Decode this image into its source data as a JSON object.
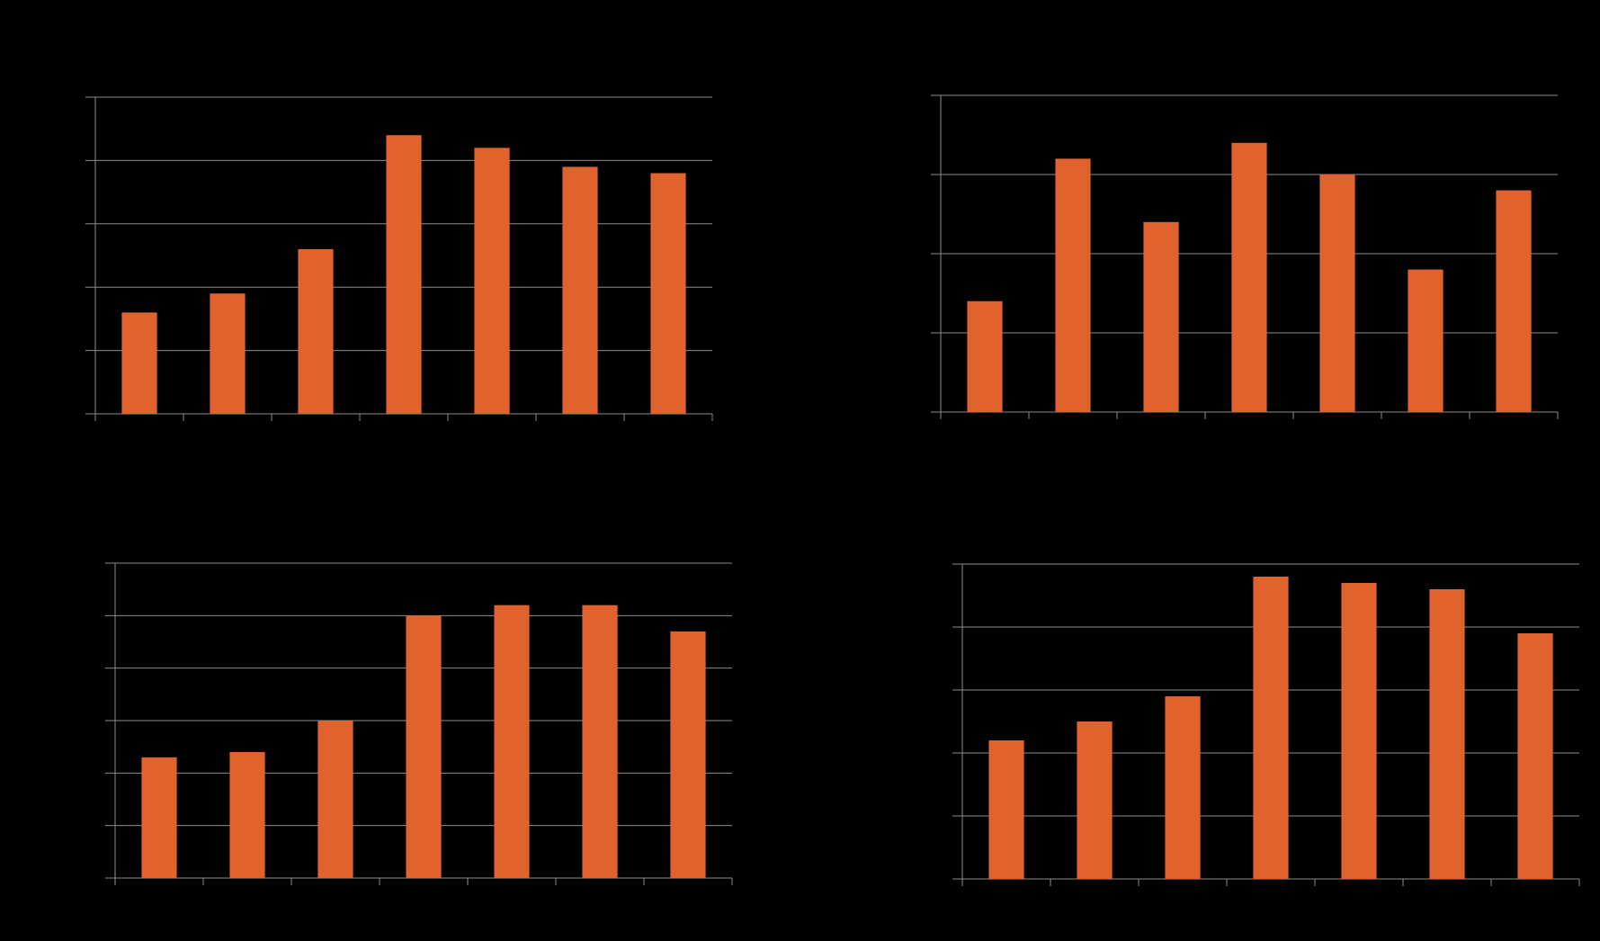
{
  "colors": {
    "background": "#000000",
    "bar": "#e0622d",
    "grid": "#8c8c8c"
  },
  "chart_data": [
    {
      "type": "bar",
      "categories": [
        "",
        "",
        "",
        "",
        "",
        "",
        ""
      ],
      "values": [
        16,
        19,
        26,
        44,
        42,
        39,
        38
      ],
      "ylim": [
        0,
        50
      ],
      "yticks": [
        0,
        10,
        20,
        30,
        40,
        50
      ],
      "grid": true,
      "data_labels": [
        "",
        "",
        "",
        "",
        "",
        "",
        ""
      ]
    },
    {
      "type": "bar",
      "categories": [
        "",
        "",
        "",
        "",
        "",
        "",
        ""
      ],
      "values": [
        14,
        32,
        24,
        34,
        30,
        18,
        28
      ],
      "ylim": [
        0,
        40
      ],
      "yticks": [
        0,
        10,
        20,
        30,
        40
      ],
      "grid": true,
      "data_labels": [
        "",
        "",
        "",
        "",
        "",
        "",
        ""
      ]
    },
    {
      "type": "bar",
      "categories": [
        "",
        "",
        "",
        "",
        "",
        "",
        ""
      ],
      "values": [
        23,
        24,
        30,
        50,
        52,
        52,
        47
      ],
      "ylim": [
        0,
        60
      ],
      "yticks": [
        0,
        10,
        20,
        30,
        40,
        50,
        60
      ],
      "grid": true,
      "data_labels": [
        "",
        "",
        "",
        "",
        "",
        "",
        ""
      ]
    },
    {
      "type": "bar",
      "categories": [
        "",
        "",
        "",
        "",
        "",
        "",
        ""
      ],
      "values": [
        22,
        25,
        29,
        48,
        47,
        46,
        39
      ],
      "ylim": [
        0,
        50
      ],
      "yticks": [
        0,
        10,
        20,
        30,
        40,
        50
      ],
      "grid": true,
      "data_labels": [
        "",
        "",
        "",
        "",
        "",
        "",
        ""
      ]
    }
  ]
}
